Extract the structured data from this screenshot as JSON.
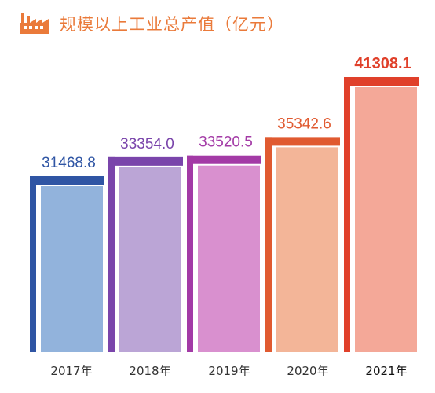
{
  "header": {
    "title": "规模以上工业总产值（亿元）",
    "icon": "factory-icon",
    "accent_color": "#ea7a3a"
  },
  "chart_data": {
    "type": "bar",
    "title": "规模以上工业总产值（亿元）",
    "categories": [
      "2017年",
      "2018年",
      "2019年",
      "2020年",
      "2021年"
    ],
    "values": [
      31468.8,
      33354.0,
      33520.5,
      35342.6,
      41308.1
    ],
    "value_labels": [
      "31468.8",
      "33354.0",
      "33520.5",
      "35342.6",
      "41308.1"
    ],
    "frame_colors": [
      "#2f55a4",
      "#7a45ab",
      "#a33aa6",
      "#e05a30",
      "#e0402a"
    ],
    "bar_colors": [
      "#92b3dc",
      "#bba5d6",
      "#d990cf",
      "#f3b598",
      "#f4a898"
    ],
    "label_colors": [
      "#2f55a4",
      "#7a45ab",
      "#a33aa6",
      "#e05a30",
      "#e0402a"
    ],
    "highlight_index": 4,
    "grid": false,
    "legend": "none"
  }
}
